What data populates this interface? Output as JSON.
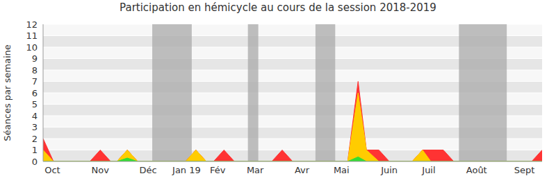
{
  "chart_data": {
    "type": "area",
    "title": "Participation en hémicycle au cours de la session 2018-2019",
    "y_label": "Séances par semaine",
    "x": [
      0,
      1,
      4.5,
      5.5,
      6.5,
      7.1,
      8.1,
      9.1,
      13.7,
      14.7,
      15.7,
      16.4,
      17.4,
      18.4,
      22,
      23,
      24,
      29.3,
      30.3,
      31.1,
      32.3,
      33.3,
      35.5,
      36.5,
      37.3,
      38.5,
      39.5,
      47,
      48
    ],
    "series": [
      {
        "color": "#ff3333",
        "values": [
          2,
          0,
          0,
          1,
          0,
          0,
          1,
          0,
          0,
          1,
          0,
          0,
          1,
          0,
          0,
          1,
          0,
          0,
          7,
          1,
          1,
          0,
          0,
          1,
          1,
          1,
          0,
          0,
          1
        ]
      },
      {
        "color": "#ffcc00",
        "values": [
          1,
          0,
          0,
          0,
          0,
          0,
          1,
          0,
          0,
          1,
          0,
          0,
          0,
          0,
          0,
          0,
          0,
          0,
          6,
          1,
          0,
          0,
          0,
          1,
          0,
          0,
          0,
          0,
          0
        ]
      },
      {
        "color": "#33dd33",
        "values": [
          0,
          0,
          0,
          0,
          0,
          0,
          0.3,
          0,
          0,
          0,
          0,
          0,
          0,
          0,
          0,
          0,
          0,
          0,
          0.4,
          0,
          0,
          0,
          0,
          0,
          0,
          0,
          0,
          0,
          0
        ]
      }
    ],
    "xlim": [
      0,
      48
    ],
    "xticks": [
      {
        "value": 0.9,
        "label": "Oct"
      },
      {
        "value": 5.5,
        "label": "Nov"
      },
      {
        "value": 10.1,
        "label": "Déc"
      },
      {
        "value": 13.8,
        "label": "Jan 19"
      },
      {
        "value": 16.8,
        "label": "Fév"
      },
      {
        "value": 20.4,
        "label": "Mar"
      },
      {
        "value": 24.9,
        "label": "Avr"
      },
      {
        "value": 28.7,
        "label": "Mai"
      },
      {
        "value": 33.3,
        "label": "Juin"
      },
      {
        "value": 37.1,
        "label": "Juil"
      },
      {
        "value": 41.7,
        "label": "Août"
      },
      {
        "value": 46.3,
        "label": "Sept"
      }
    ],
    "ylim": [
      0,
      12
    ],
    "yticks": [
      0,
      1,
      2,
      3,
      4,
      5,
      6,
      7,
      8,
      9,
      10,
      11,
      12
    ],
    "grid": true,
    "highlight_ranges": [
      [
        10.5,
        14.3
      ],
      [
        19.7,
        20.7
      ],
      [
        26.2,
        28.1
      ],
      [
        40,
        44.6
      ]
    ]
  }
}
